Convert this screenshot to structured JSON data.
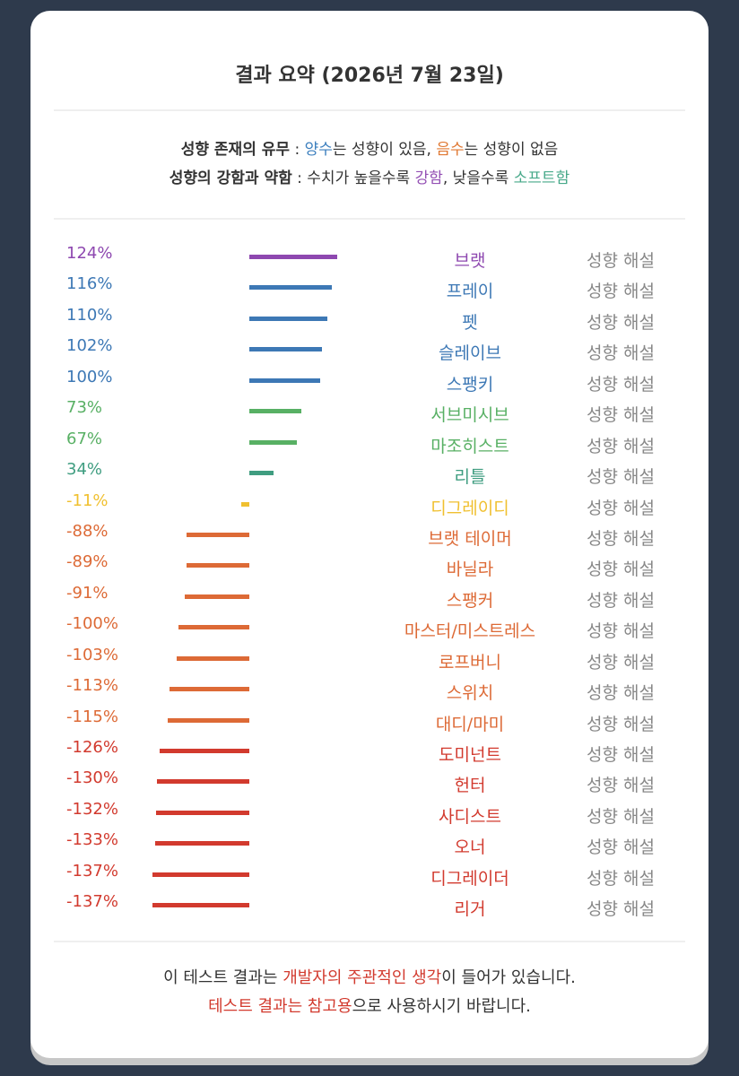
{
  "title": "결과 요약 (2026년 7월 23일)",
  "legend": {
    "line1": {
      "label": "성향 존재의 유무",
      "sep": " : ",
      "pos": "양수",
      "mid": "는 성향이 있음, ",
      "neg": "음수",
      "end": "는 성향이 없음"
    },
    "line2": {
      "label": "성향의 강함과 약함",
      "sep": " : ",
      "pre": "수치가 높을수록 ",
      "strong": "강함",
      "mid": ", 낮을수록 ",
      "soft": "소프트함"
    }
  },
  "explain_label": "성향 해설",
  "chart_data": {
    "type": "bar",
    "orientation": "horizontal",
    "unit": "%",
    "categories": [
      "브랫",
      "프레이",
      "펫",
      "슬레이브",
      "스팽키",
      "서브미시브",
      "마조히스트",
      "리틀",
      "디그레이디",
      "브랫 테이머",
      "바닐라",
      "스팽커",
      "마스터/미스트레스",
      "로프버니",
      "스위치",
      "대디/마미",
      "도미넌트",
      "헌터",
      "사디스트",
      "오너",
      "디그레이더",
      "리거"
    ],
    "values": [
      124,
      116,
      110,
      102,
      100,
      73,
      67,
      34,
      -11,
      -88,
      -89,
      -91,
      -100,
      -103,
      -113,
      -115,
      -126,
      -130,
      -132,
      -133,
      -137,
      -137
    ],
    "labels": [
      "124%",
      "116%",
      "110%",
      "102%",
      "100%",
      "73%",
      "67%",
      "34%",
      "-11%",
      "-88%",
      "-89%",
      "-91%",
      "-100%",
      "-103%",
      "-113%",
      "-115%",
      "-126%",
      "-130%",
      "-132%",
      "-133%",
      "-137%",
      "-137%"
    ],
    "colors": [
      "#8e48b0",
      "#3d78b5",
      "#3d78b5",
      "#3d78b5",
      "#3d78b5",
      "#58b064",
      "#58b064",
      "#3f9d80",
      "#f0c030",
      "#dd6a36",
      "#dd6a36",
      "#dd6a36",
      "#dd6a36",
      "#dd6a36",
      "#dd6a36",
      "#dd6a36",
      "#d23a2e",
      "#d23a2e",
      "#d23a2e",
      "#d23a2e",
      "#d23a2e",
      "#d23a2e"
    ]
  },
  "footer": {
    "line1_pre": "이 테스트 결과는 ",
    "line1_red": "개발자의 주관적인 생각",
    "line1_post": "이 들어가 있습니다.",
    "line2_red": "테스트 결과는 참고용",
    "line2_post": "으로 사용하시기 바랍니다."
  }
}
